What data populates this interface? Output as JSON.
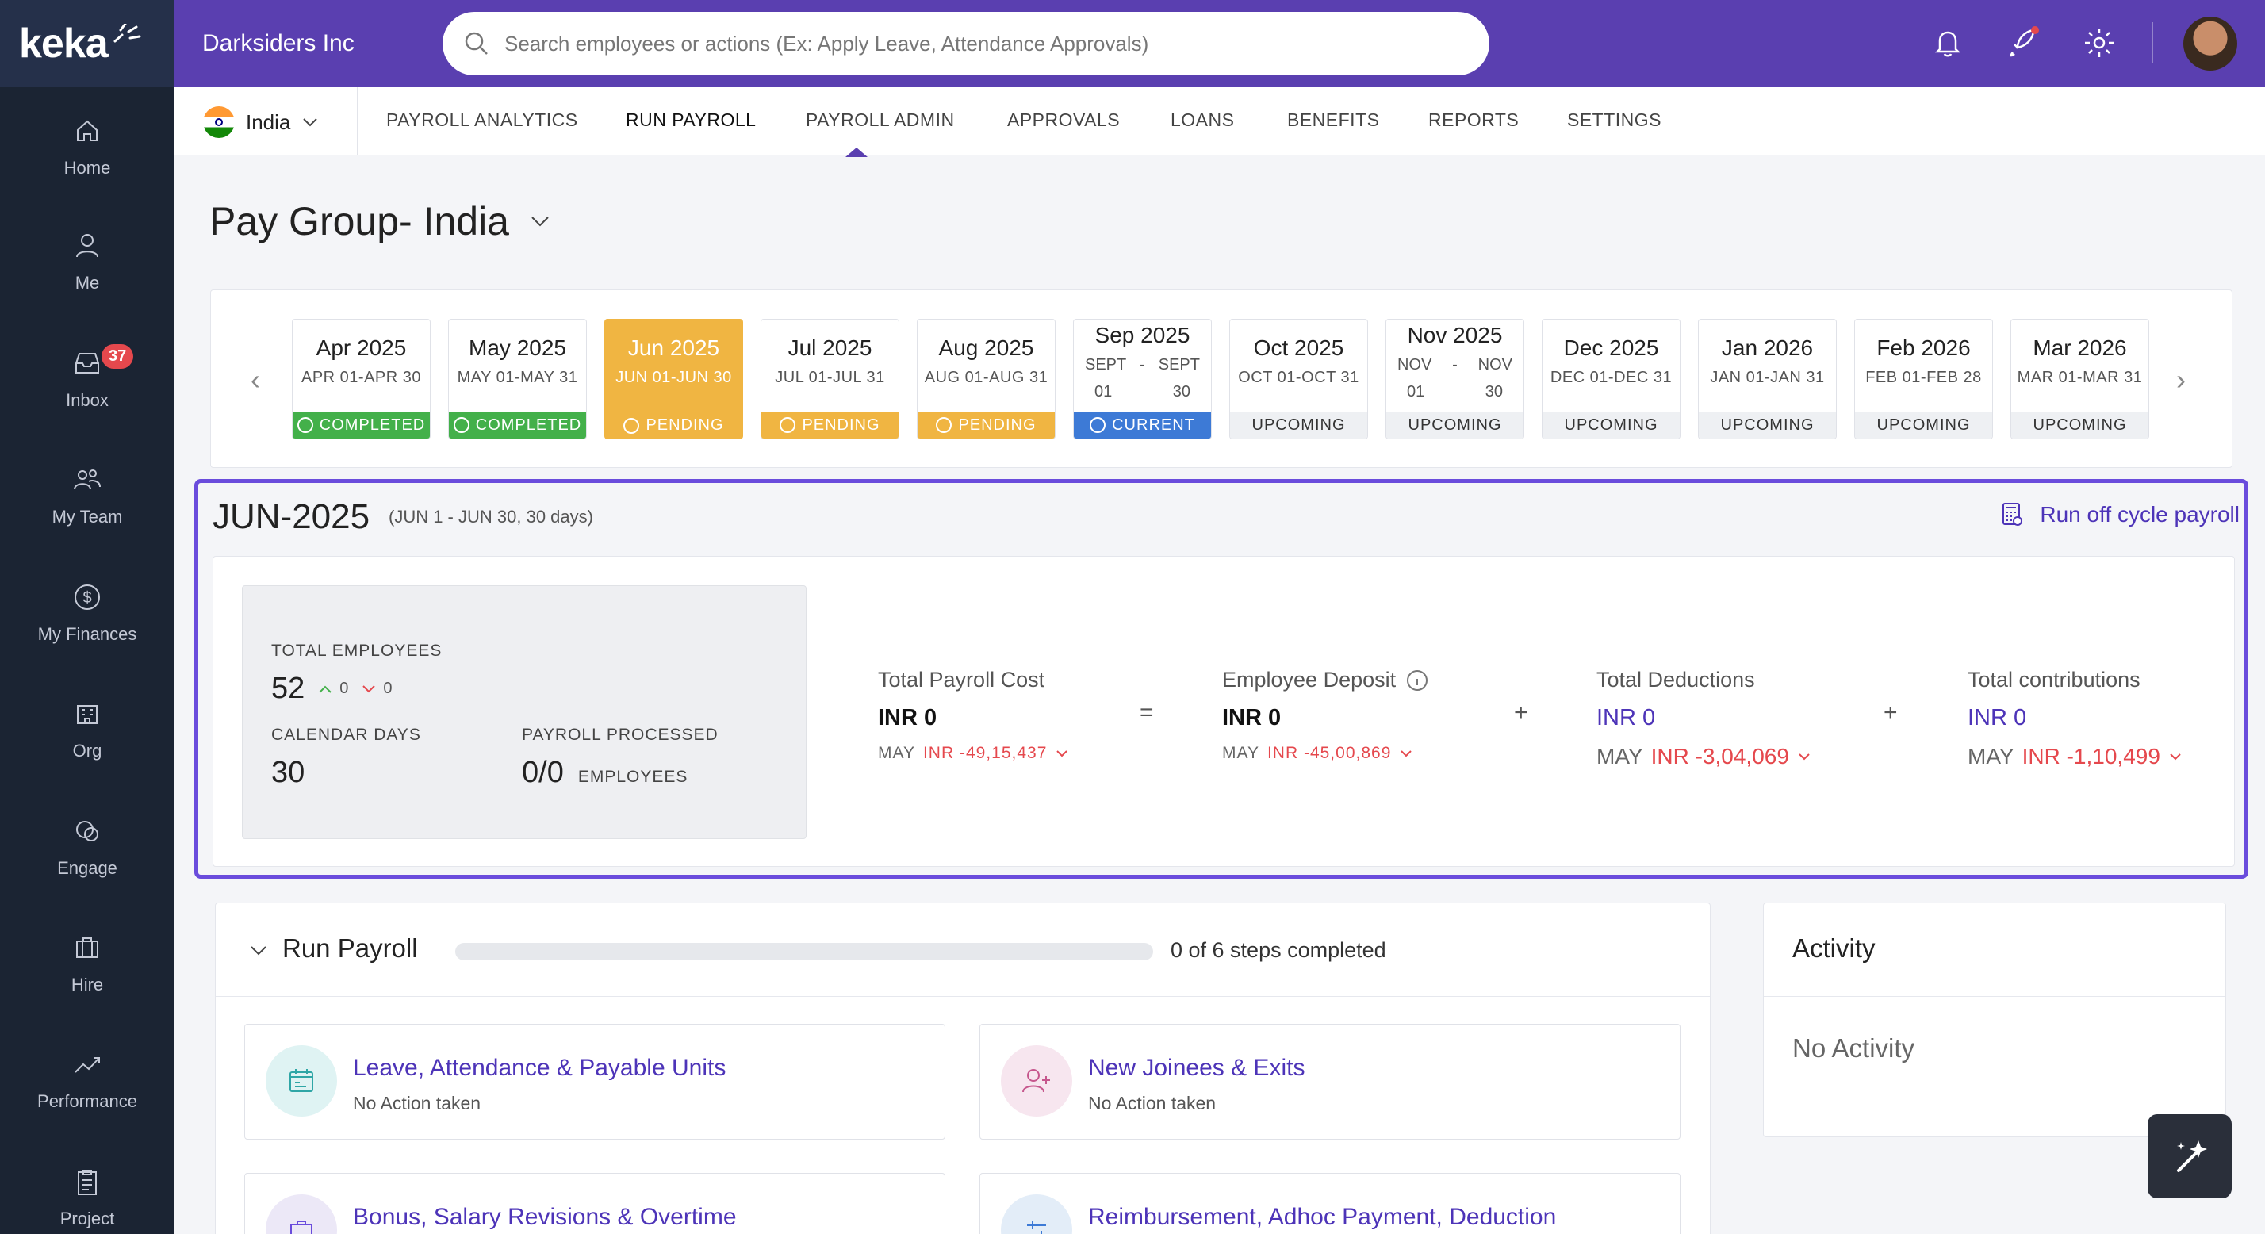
{
  "brand": {
    "logo": "keka",
    "company": "Darksiders Inc"
  },
  "search": {
    "placeholder": "Search employees or actions (Ex: Apply Leave, Attendance Approvals)"
  },
  "sidebar": {
    "items": [
      {
        "label": "Home",
        "icon": "home-icon"
      },
      {
        "label": "Me",
        "icon": "user-icon"
      },
      {
        "label": "Inbox",
        "icon": "inbox-icon",
        "badge": "37"
      },
      {
        "label": "My Team",
        "icon": "team-icon"
      },
      {
        "label": "My Finances",
        "icon": "dollar-icon"
      },
      {
        "label": "Org",
        "icon": "org-icon"
      },
      {
        "label": "Engage",
        "icon": "engage-icon"
      },
      {
        "label": "Hire",
        "icon": "briefcase-icon"
      },
      {
        "label": "Performance",
        "icon": "trend-icon"
      },
      {
        "label": "Project",
        "icon": "clipboard-icon"
      }
    ]
  },
  "nav": {
    "country": "India",
    "tabs": [
      "PAYROLL ANALYTICS",
      "RUN PAYROLL",
      "PAYROLL ADMIN",
      "APPROVALS",
      "LOANS",
      "BENEFITS",
      "REPORTS",
      "SETTINGS"
    ],
    "active_tab": "RUN PAYROLL"
  },
  "page": {
    "title": "Pay Group- India"
  },
  "months": [
    {
      "name": "Apr 2025",
      "range": "APR 01-APR 30",
      "status": "COMPLETED"
    },
    {
      "name": "May 2025",
      "range": "MAY 01-MAY 31",
      "status": "COMPLETED"
    },
    {
      "name": "Jun 2025",
      "range": "JUN 01-JUN 30",
      "status": "PENDING"
    },
    {
      "name": "Jul 2025",
      "range": "JUL 01-JUL 31",
      "status": "PENDING"
    },
    {
      "name": "Aug 2025",
      "range": "AUG 01-AUG 31",
      "status": "PENDING"
    },
    {
      "name": "Sep 2025",
      "range_parts": [
        "SEPT",
        "-",
        "SEPT",
        "01",
        "30"
      ],
      "status": "CURRENT"
    },
    {
      "name": "Oct 2025",
      "range": "OCT 01-OCT 31",
      "status": "UPCOMING"
    },
    {
      "name": "Nov 2025",
      "range_parts": [
        "NOV",
        "-",
        "NOV",
        "01",
        "30"
      ],
      "status": "UPCOMING"
    },
    {
      "name": "Dec 2025",
      "range": "DEC 01-DEC 31",
      "status": "UPCOMING"
    },
    {
      "name": "Jan 2026",
      "range": "JAN 01-JAN 31",
      "status": "UPCOMING"
    },
    {
      "name": "Feb 2026",
      "range": "FEB 01-FEB 28",
      "status": "UPCOMING"
    },
    {
      "name": "Mar 2026",
      "range": "MAR 01-MAR 31",
      "status": "UPCOMING"
    }
  ],
  "period": {
    "title": "JUN-2025",
    "subtitle": "(JUN 1 - JUN 30, 30 days)",
    "off_cycle_label": "Run off cycle payroll"
  },
  "summary": {
    "total_employees_label": "TOTAL EMPLOYEES",
    "total_employees": "52",
    "up_count": "0",
    "down_count": "0",
    "calendar_days_label": "CALENDAR DAYS",
    "calendar_days": "30",
    "payroll_processed_label": "PAYROLL PROCESSED",
    "payroll_processed": "0/0",
    "employees_unit": "EMPLOYEES"
  },
  "metrics": {
    "payroll_cost": {
      "title": "Total Payroll Cost",
      "value": "INR 0",
      "prev_label": "MAY",
      "prev_value": "INR -49,15,437"
    },
    "employee_deposit": {
      "title": "Employee Deposit",
      "value": "INR 0",
      "prev_label": "MAY",
      "prev_value": "INR -45,00,869"
    },
    "deductions": {
      "title": "Total Deductions",
      "value": "INR 0",
      "prev_label": "MAY",
      "prev_value": "INR -3,04,069"
    },
    "contributions": {
      "title": "Total contributions",
      "value": "INR 0",
      "prev_label": "MAY",
      "prev_value": "INR -1,10,499"
    },
    "op_equals": "=",
    "op_plus": "+"
  },
  "run_payroll": {
    "title": "Run Payroll",
    "progress": 0,
    "progress_text": "0 of 6 steps completed",
    "steps": [
      {
        "title": "Leave, Attendance & Payable Units",
        "sub": "No Action taken"
      },
      {
        "title": "New Joinees & Exits",
        "sub": "No Action taken"
      },
      {
        "title": "Bonus, Salary Revisions & Overtime",
        "sub": ""
      },
      {
        "title": "Reimbursement, Adhoc Payment, Deduction",
        "sub": ""
      }
    ]
  },
  "activity": {
    "title": "Activity",
    "empty": "No Activity"
  },
  "colors": {
    "brand": "#5a3fb0",
    "accent_link": "#4d34b8",
    "completed": "#43b04a",
    "pending": "#f0b542",
    "current": "#3d7ad6",
    "negative": "#e5484d"
  }
}
